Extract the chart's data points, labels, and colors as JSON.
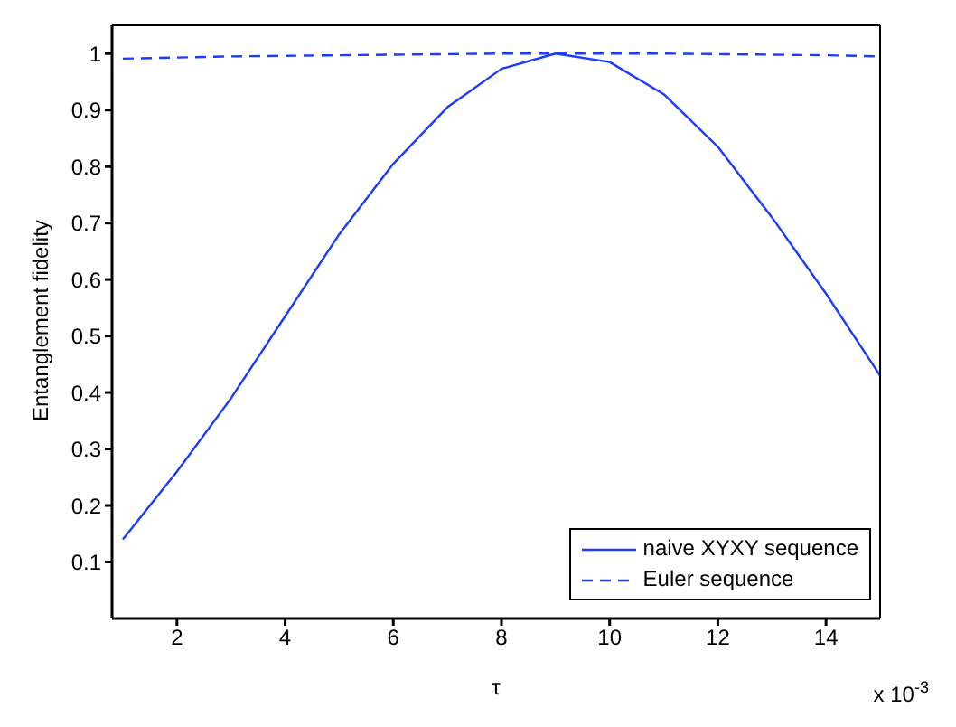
{
  "chart_data": {
    "type": "line",
    "xlabel": "τ",
    "ylabel": "Entanglement fidelity",
    "annotations": [
      "x 10$^{-3}$"
    ],
    "x": [
      1,
      2,
      3,
      4,
      5,
      6,
      7,
      8,
      9,
      10,
      11,
      12,
      13,
      14,
      15
    ],
    "series": [
      {
        "name": "naive XYXY sequence",
        "color": "#1a3cff",
        "line_style": "solid",
        "values": [
          0.14,
          0.26,
          0.39,
          0.535,
          0.68,
          0.805,
          0.905,
          0.973,
          1.0,
          0.985,
          0.928,
          0.835,
          0.71,
          0.575,
          0.43
        ]
      },
      {
        "name": "Euler sequence",
        "color": "#1a3cff",
        "line_style": "dashed",
        "values": [
          0.991,
          0.993,
          0.995,
          0.996,
          0.997,
          0.998,
          0.999,
          1.0,
          1.0,
          1.0,
          1.0,
          0.999,
          0.998,
          0.997,
          0.995
        ]
      }
    ],
    "xlim": [
      0.8,
      15
    ],
    "xticks": [
      2,
      4,
      6,
      8,
      10,
      12,
      14
    ],
    "ylim": [
      0,
      1.05
    ],
    "yticks": [
      0.1,
      0.2,
      0.3,
      0.4,
      0.5,
      0.6,
      0.7,
      0.8,
      0.9,
      1
    ],
    "grid": false,
    "legend": "bottom right",
    "marker": "none"
  }
}
